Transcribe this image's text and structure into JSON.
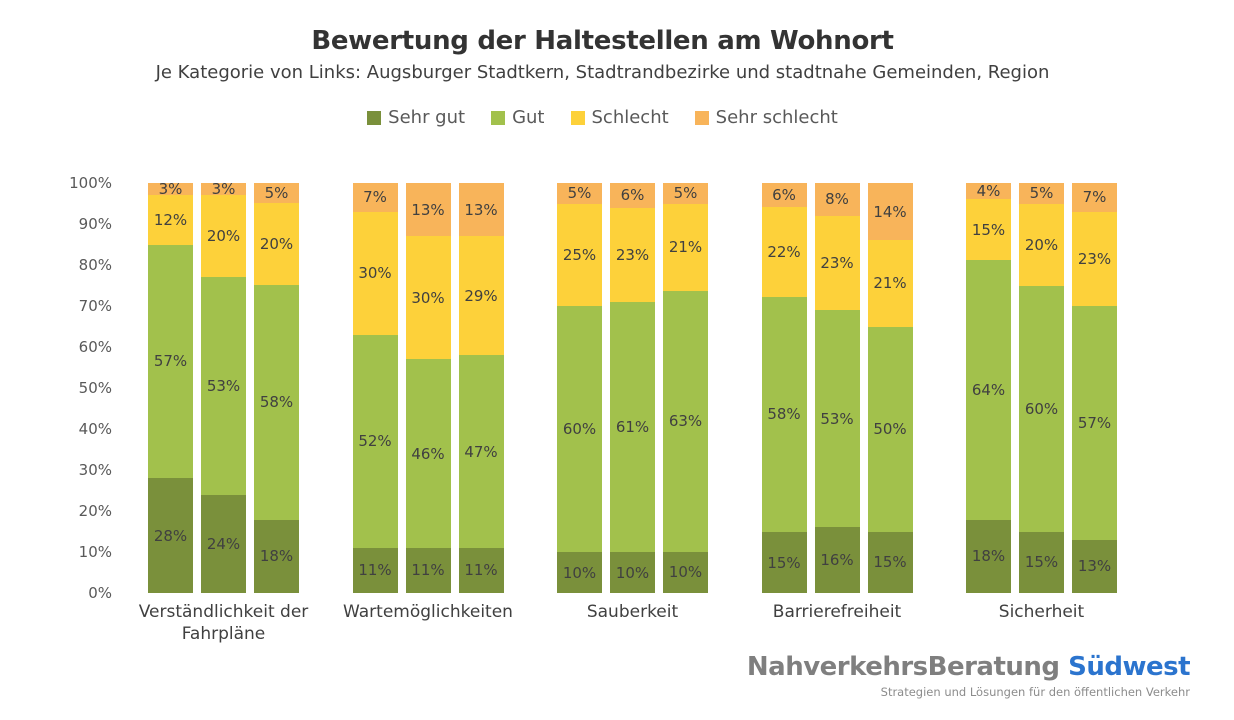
{
  "chart_data": {
    "type": "bar",
    "stacked": true,
    "title": "Bewertung der Haltestellen am Wohnort",
    "subtitle": "Je Kategorie von Links: Augsburger Stadtkern, Stadtrandbezirke und stadtnahe Gemeinden, Region",
    "unit": "%",
    "ylim": [
      0,
      100
    ],
    "y_ticks": [
      "0%",
      "10%",
      "20%",
      "30%",
      "40%",
      "50%",
      "60%",
      "70%",
      "80%",
      "90%",
      "100%"
    ],
    "grid": false,
    "legend_position": "top",
    "bars_per_category_from_left": [
      "Augsburger Stadtkern",
      "Stadtrandbezirke und stadtnahe Gemeinden",
      "Region"
    ],
    "segments": [
      {
        "name": "Sehr gut",
        "color": "#7A903B"
      },
      {
        "name": "Gut",
        "color": "#A2C14C"
      },
      {
        "name": "Schlecht",
        "color": "#FDD13A"
      },
      {
        "name": "Sehr schlecht",
        "color": "#F8B45A"
      }
    ],
    "categories": [
      "Verständlichkeit der Fahrpläne",
      "Wartemöglichkeiten",
      "Sauberkeit",
      "Barrierefreiheit",
      "Sicherheit"
    ],
    "values": [
      [
        [
          28,
          57,
          12,
          3
        ],
        [
          24,
          53,
          20,
          3
        ],
        [
          18,
          58,
          20,
          5
        ]
      ],
      [
        [
          11,
          52,
          30,
          7
        ],
        [
          11,
          46,
          30,
          13
        ],
        [
          11,
          47,
          29,
          13
        ]
      ],
      [
        [
          10,
          60,
          25,
          5
        ],
        [
          10,
          61,
          23,
          6
        ],
        [
          10,
          63,
          21,
          5
        ]
      ],
      [
        [
          15,
          58,
          22,
          6
        ],
        [
          16,
          53,
          23,
          8
        ],
        [
          15,
          50,
          21,
          14
        ]
      ],
      [
        [
          18,
          64,
          15,
          4
        ],
        [
          15,
          60,
          20,
          5
        ],
        [
          13,
          57,
          23,
          7
        ]
      ]
    ]
  },
  "logo": {
    "name_part1": "NahverkehrsBeratung",
    "name_part2": "Südwest",
    "tagline": "Strategien und Lösungen für den öffentlichen Verkehr",
    "name_color": "#7F7F7F",
    "accent_color": "#2B74CE",
    "tagline_color": "#8C8C8C"
  },
  "colors": {
    "title": "#333333",
    "subtitle": "#404040",
    "axis_text": "#595959",
    "bar_label": "#404040"
  }
}
